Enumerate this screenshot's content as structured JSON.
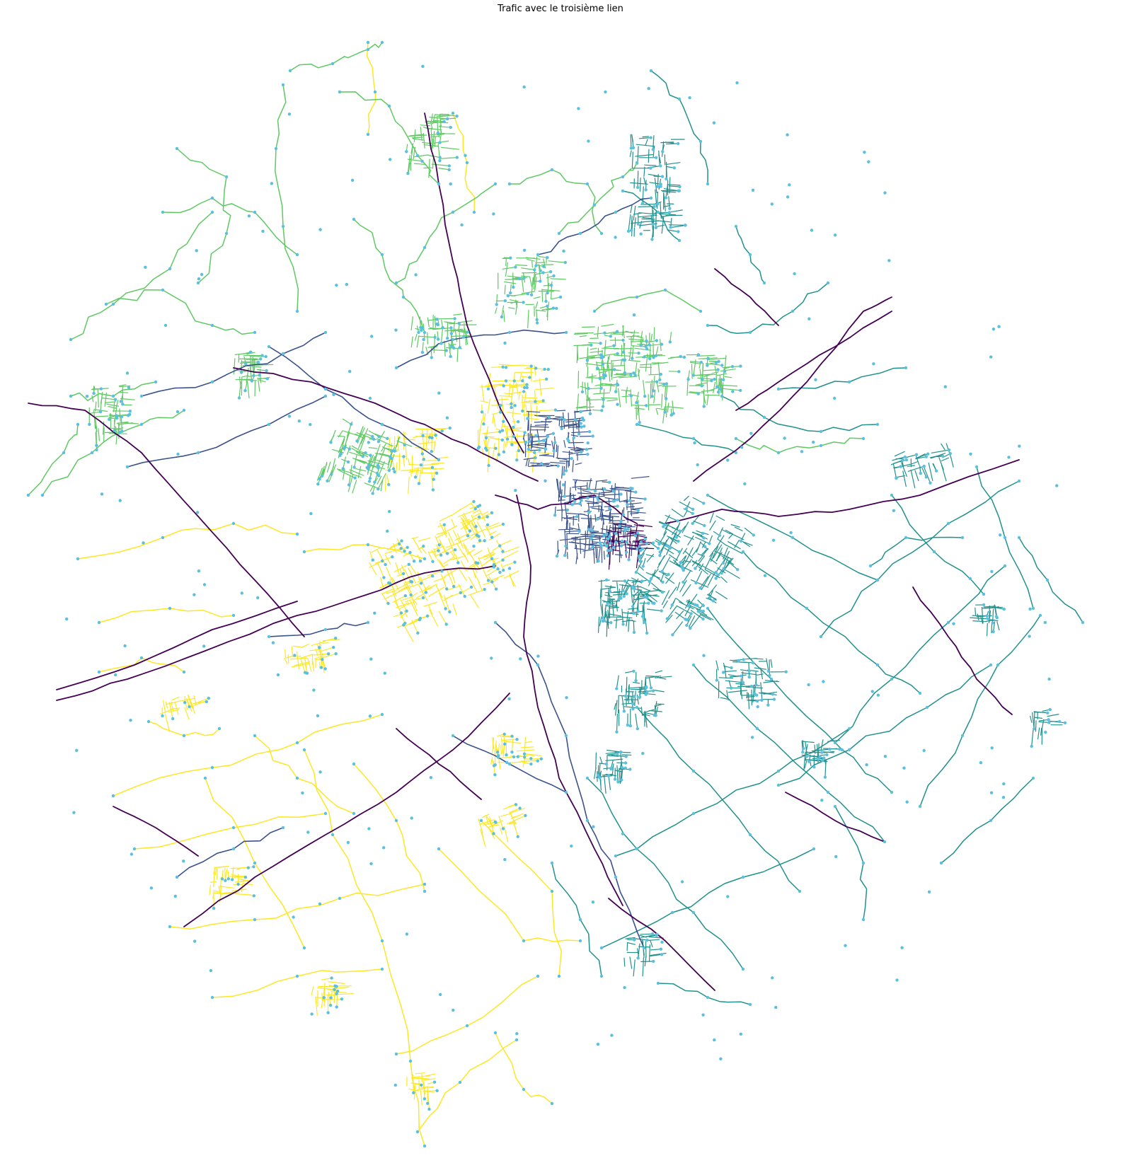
{
  "title": "Trafic avec le troisième lien",
  "palette": {
    "trafic_eleve": "#440154",
    "trafic_moyen_eleve": "#3b528b",
    "trafic_moyen": "#21918c",
    "trafic_moyen_faible": "#5ec962",
    "trafic_faible": "#fde725",
    "noeuds": "#5bc0de",
    "fleuve": "#ffffff"
  }
}
